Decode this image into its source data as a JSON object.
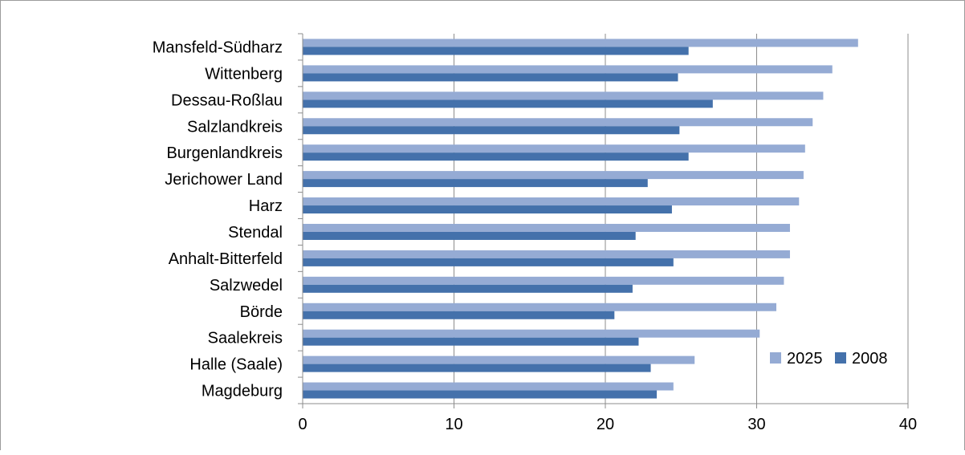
{
  "chart_data": {
    "type": "bar",
    "orientation": "horizontal",
    "categories": [
      "Mansfeld-Südharz",
      "Wittenberg",
      "Dessau-Roßlau",
      "Salzlandkreis",
      "Burgenlandkreis",
      "Jerichower Land",
      "Harz",
      "Stendal",
      "Anhalt-Bitterfeld",
      "Salzwedel",
      "Börde",
      "Saalekreis",
      "Halle (Saale)",
      "Magdeburg"
    ],
    "series": [
      {
        "name": "2025",
        "color": "#95abd4",
        "values": [
          36.7,
          35.0,
          34.4,
          33.7,
          33.2,
          33.1,
          32.8,
          32.2,
          32.2,
          31.8,
          31.3,
          30.2,
          25.9,
          24.5
        ]
      },
      {
        "name": "2008",
        "color": "#4471ab",
        "values": [
          25.5,
          24.8,
          27.1,
          24.9,
          25.5,
          22.8,
          24.4,
          22.0,
          24.5,
          21.8,
          20.6,
          22.2,
          23.0,
          23.4
        ]
      }
    ],
    "xlim": [
      0,
      40
    ],
    "xticks": [
      0,
      10,
      20,
      30,
      40
    ],
    "xticklabels": [
      "0",
      "10",
      "20",
      "30",
      "40"
    ],
    "grid": true,
    "legend_position": "bottom-right",
    "title": "",
    "xlabel": "",
    "ylabel": ""
  }
}
